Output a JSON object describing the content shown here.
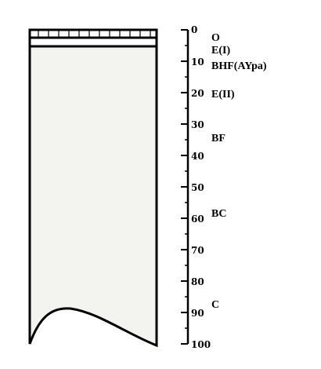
{
  "profile": {
    "depth_unit": "cm",
    "depth_ticks": [
      "0",
      "10",
      "20",
      "30",
      "40",
      "50",
      "60",
      "70",
      "80",
      "90",
      "100"
    ],
    "horizons": [
      {
        "label": "O",
        "depth": 1
      },
      {
        "label": "E(I)",
        "depth": 5
      },
      {
        "label": "BHF(AYpa)",
        "depth": 10
      },
      {
        "label": "E(II)",
        "depth": 19
      },
      {
        "label": "BF",
        "depth": 33
      },
      {
        "label": "BC",
        "depth": 57
      },
      {
        "label": "C",
        "depth": 86
      }
    ],
    "colors": {
      "outline": "#000000",
      "fill": "#f3f3ef",
      "background": "#ffffff"
    }
  }
}
